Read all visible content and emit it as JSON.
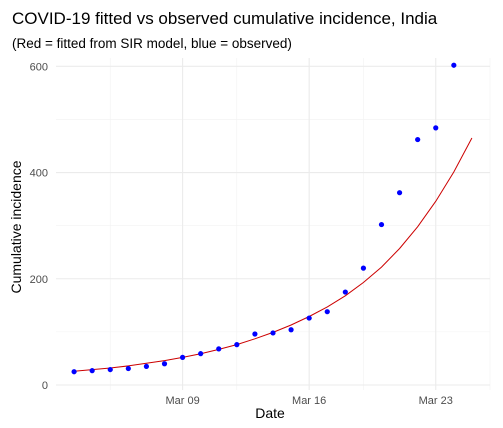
{
  "chart_data": {
    "type": "scatter",
    "title": "COVID-19 fitted vs observed cumulative incidence, India",
    "subtitle": "(Red = fitted from SIR model, blue = observed)",
    "xlabel": "Date",
    "ylabel": "Cumulative incidence",
    "x_ticks": [
      "Mar 09",
      "Mar 16",
      "Mar 23"
    ],
    "y_ticks": [
      0,
      200,
      400,
      600
    ],
    "ylim": [
      0,
      625
    ],
    "xlim": [
      "2020-03-02",
      "2020-03-26"
    ],
    "grid": true,
    "series": [
      {
        "kind": "points",
        "color": "#0000ff",
        "x": [
          "2020-03-03",
          "2020-03-04",
          "2020-03-05",
          "2020-03-06",
          "2020-03-07",
          "2020-03-08",
          "2020-03-09",
          "2020-03-10",
          "2020-03-11",
          "2020-03-12",
          "2020-03-13",
          "2020-03-14",
          "2020-03-15",
          "2020-03-16",
          "2020-03-17",
          "2020-03-18",
          "2020-03-19",
          "2020-03-20",
          "2020-03-21",
          "2020-03-22",
          "2020-03-23",
          "2020-03-24",
          "2020-03-25"
        ],
        "y": [
          25,
          27,
          29,
          31,
          35,
          40,
          52,
          59,
          68,
          76,
          96,
          98,
          104,
          126,
          138,
          175,
          220,
          302,
          362,
          462,
          484,
          602,
          null
        ]
      },
      {
        "kind": "line",
        "color": "#cc0000",
        "x": [
          "2020-03-03",
          "2020-03-04",
          "2020-03-05",
          "2020-03-06",
          "2020-03-07",
          "2020-03-08",
          "2020-03-09",
          "2020-03-10",
          "2020-03-11",
          "2020-03-12",
          "2020-03-13",
          "2020-03-14",
          "2020-03-15",
          "2020-03-16",
          "2020-03-17",
          "2020-03-18",
          "2020-03-19",
          "2020-03-20",
          "2020-03-21",
          "2020-03-22",
          "2020-03-23",
          "2020-03-24",
          "2020-03-25"
        ],
        "y": [
          26,
          29,
          32,
          36,
          41,
          46,
          52,
          59,
          67,
          76,
          87,
          99,
          113,
          129,
          147,
          168,
          193,
          222,
          257,
          298,
          346,
          401,
          465
        ]
      }
    ]
  }
}
